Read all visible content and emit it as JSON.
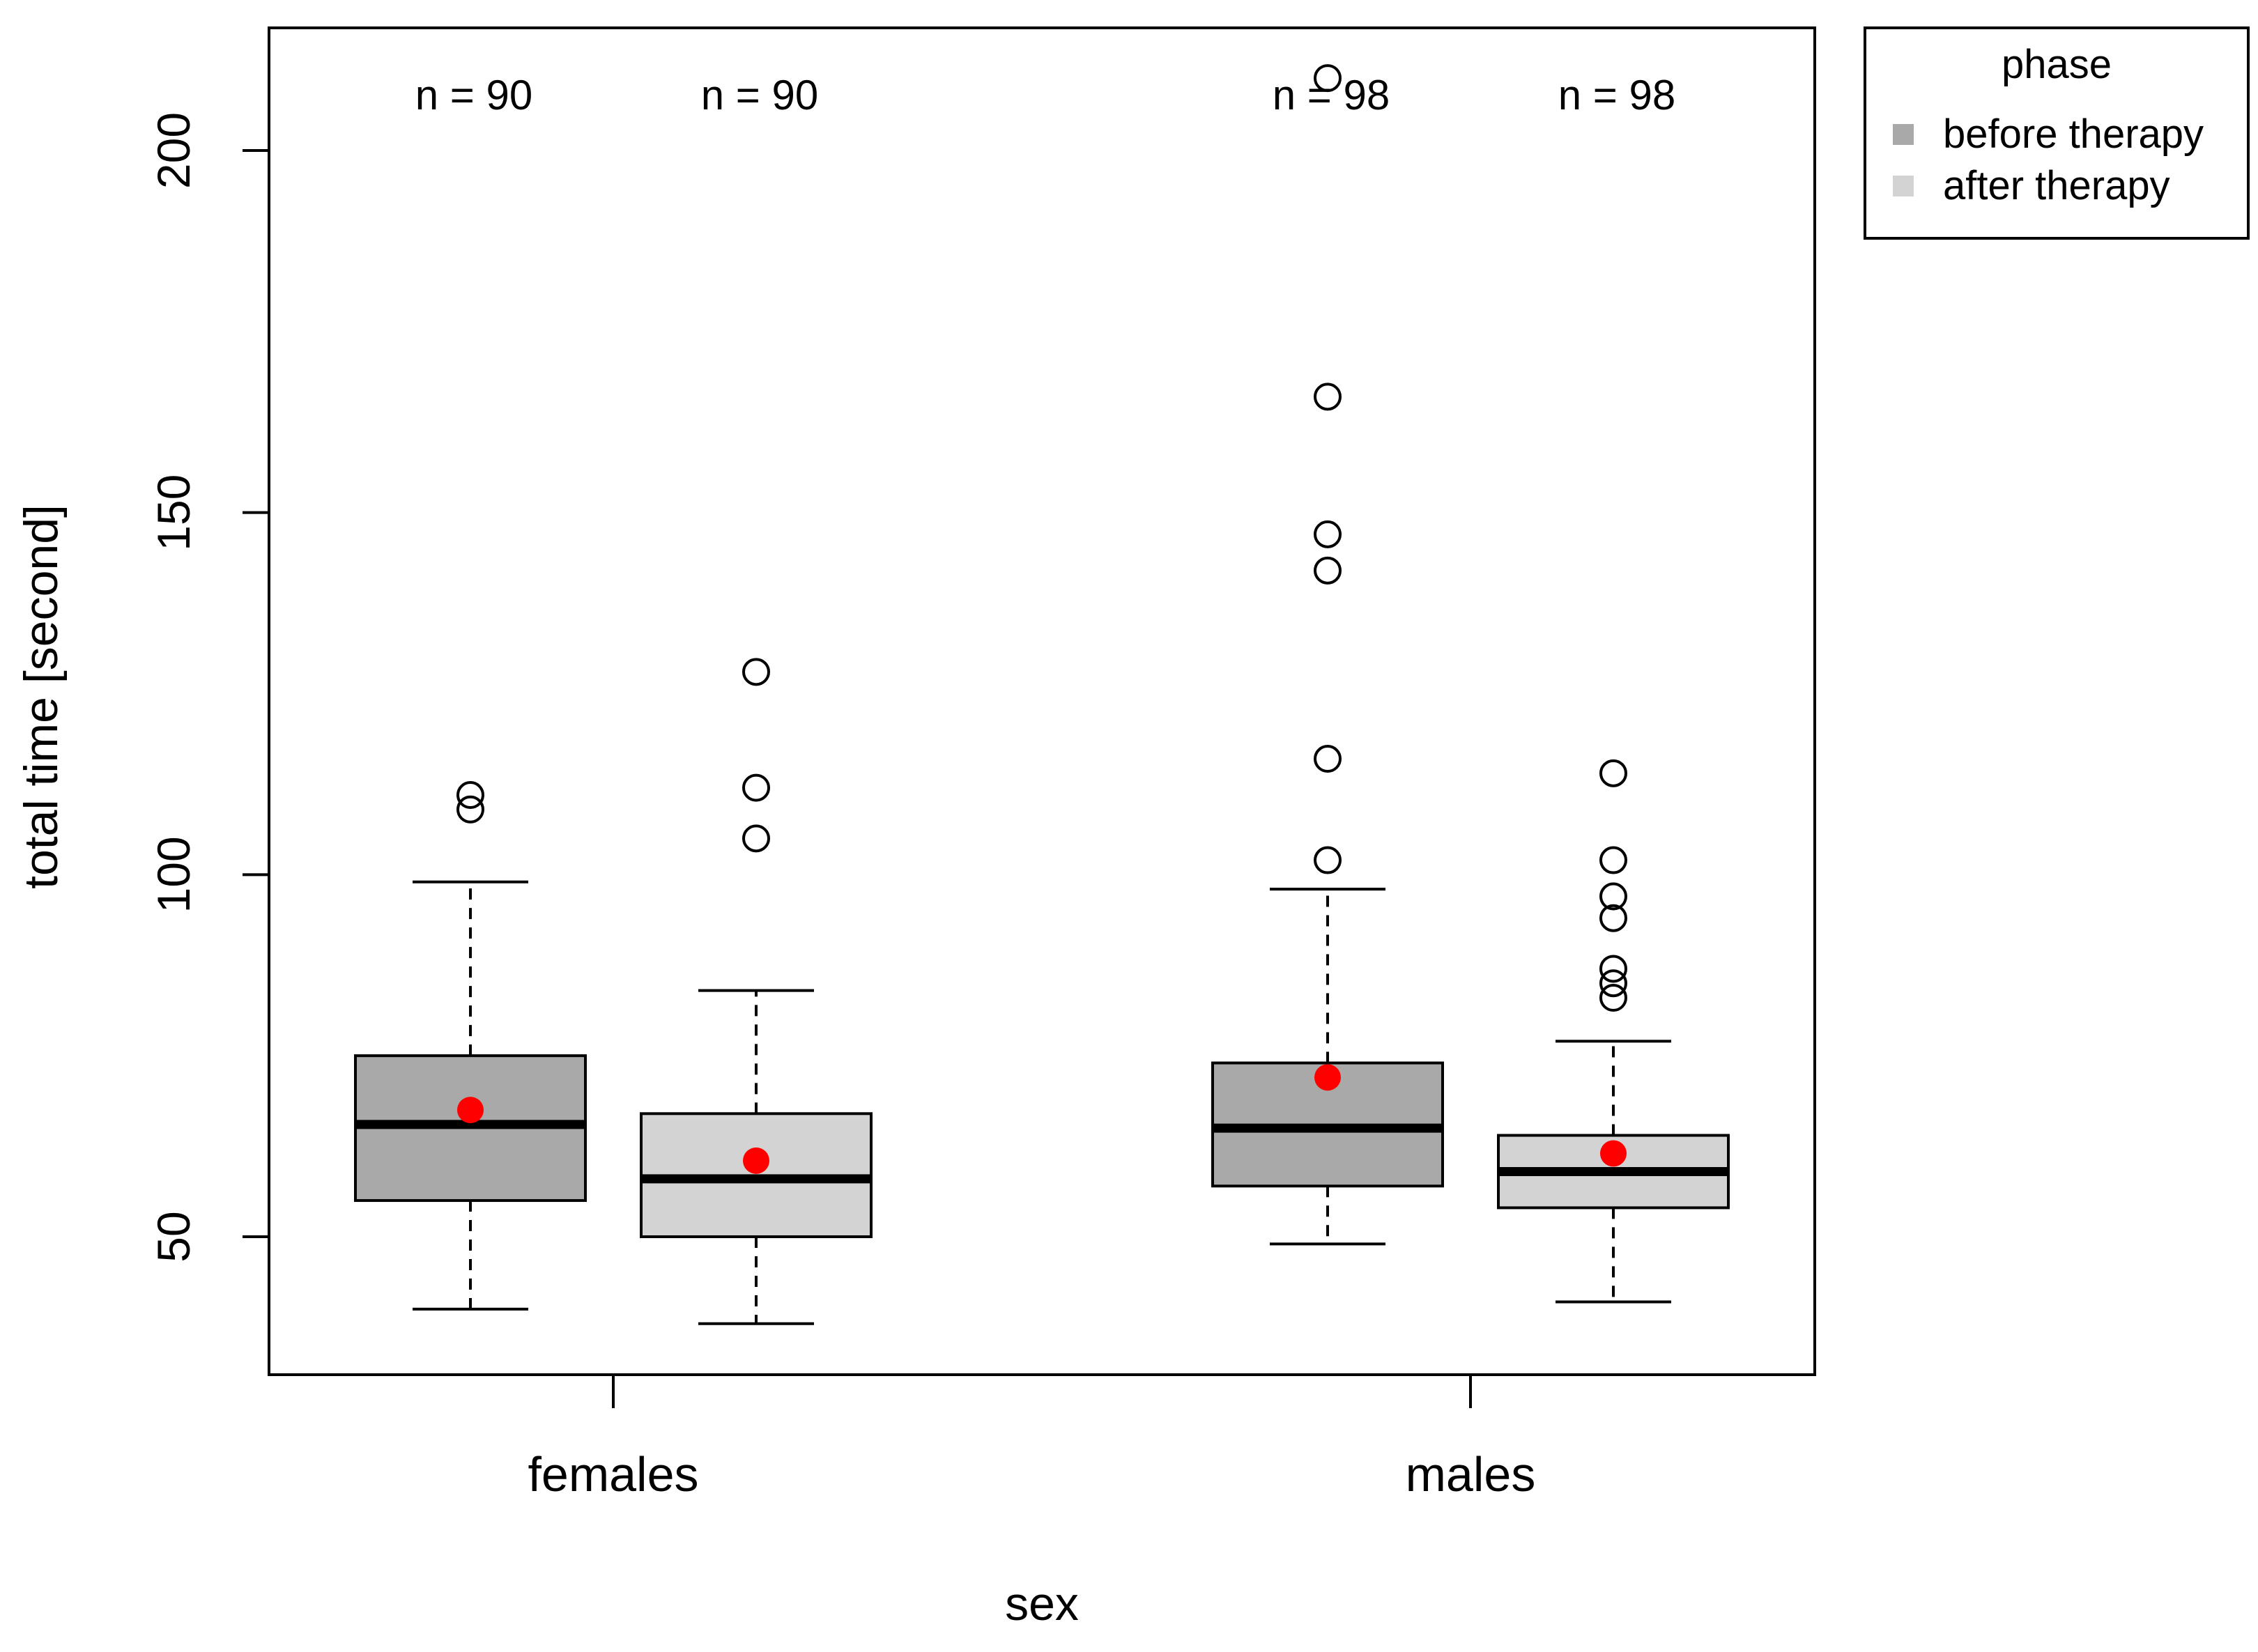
{
  "chart_data": {
    "type": "boxplot",
    "title": "",
    "xlabel": "sex",
    "ylabel": "total time [second]",
    "ylim": [
      30,
      217
    ],
    "yticks": [
      50,
      100,
      150,
      200
    ],
    "categories": [
      "females",
      "males"
    ],
    "legend": {
      "title": "phase",
      "position": "top-right",
      "entries": [
        {
          "label": "before therapy",
          "color": "#a9a9a9"
        },
        {
          "label": "after therapy",
          "color": "#d3d3d3"
        }
      ]
    },
    "mean_color": "#ff0000",
    "boxes": [
      {
        "category": "females",
        "series": "before therapy",
        "n_label": "n = 90",
        "color": "#a9a9a9",
        "whisker_low": 40,
        "q1": 55,
        "median": 65.5,
        "q3": 75,
        "whisker_high": 99,
        "mean": 67.5,
        "outliers": [
          109,
          111
        ]
      },
      {
        "category": "females",
        "series": "after therapy",
        "n_label": "n = 90",
        "color": "#d3d3d3",
        "whisker_low": 38,
        "q1": 50,
        "median": 58,
        "q3": 67,
        "whisker_high": 84,
        "mean": 60.5,
        "outliers": [
          105,
          112,
          128
        ]
      },
      {
        "category": "males",
        "series": "before therapy",
        "n_label": "n = 98",
        "color": "#a9a9a9",
        "whisker_low": 49,
        "q1": 57,
        "median": 65,
        "q3": 74,
        "whisker_high": 98,
        "mean": 72,
        "outliers": [
          102,
          116,
          142,
          147,
          166,
          210
        ]
      },
      {
        "category": "males",
        "series": "after therapy",
        "n_label": "n = 98",
        "color": "#d3d3d3",
        "whisker_low": 41,
        "q1": 54,
        "median": 59,
        "q3": 64,
        "whisker_high": 77,
        "mean": 61.5,
        "outliers": [
          83,
          85,
          87,
          94,
          97,
          102,
          114
        ]
      }
    ]
  }
}
